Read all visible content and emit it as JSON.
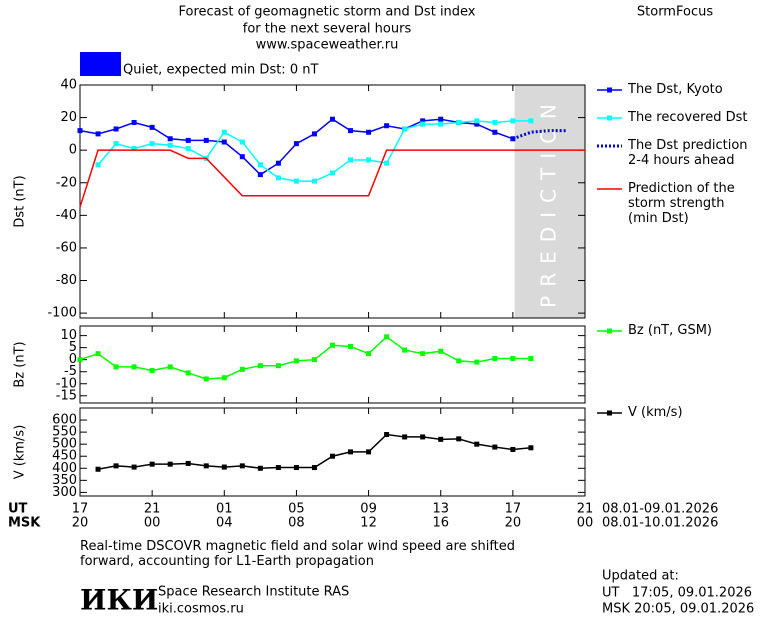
{
  "header": {
    "title_lines": [
      "Forecast of geomagnetic storm and Dst index",
      "for the next several hours",
      "www.spaceweather.ru"
    ],
    "brand": "StormFocus"
  },
  "chart_data": [
    {
      "type": "line",
      "ylabel": "Dst (nT)",
      "xlim": [
        0,
        28
      ],
      "ylim": [
        -103,
        40
      ],
      "yticks": [
        40,
        20,
        0,
        -20,
        -40,
        -60,
        -80,
        -100
      ],
      "annotation": {
        "text": "Quiet, expected min Dst: 0 nT",
        "color": "#0000ff"
      },
      "shaded_region": {
        "text": "PREDICTION",
        "xrange": [
          24.1,
          28
        ],
        "color": "#d9d9d9"
      },
      "legend": "right",
      "series": [
        {
          "name": "The Dst, Kyoto",
          "color": "#0000ff",
          "marker": true,
          "dotted": false,
          "x": [
            0,
            1,
            2,
            3,
            4,
            5,
            6,
            7,
            8,
            9,
            10,
            11,
            12,
            13,
            14,
            15,
            16,
            17,
            18,
            19,
            20,
            21,
            22,
            23,
            24
          ],
          "values": [
            12,
            10,
            13,
            17,
            14,
            7,
            6,
            6,
            5,
            -4,
            -15,
            -8,
            4,
            10,
            19,
            12,
            11,
            15,
            13,
            18,
            19,
            17,
            16,
            11,
            7
          ]
        },
        {
          "name": "The recovered Dst",
          "color": "#00ffff",
          "marker": true,
          "dotted": false,
          "x": [
            1,
            2,
            3,
            4,
            5,
            6,
            7,
            8,
            9,
            10,
            11,
            12,
            13,
            14,
            15,
            16,
            17,
            18,
            19,
            20,
            21,
            22,
            23,
            24,
            25
          ],
          "values": [
            -9,
            4,
            1,
            4,
            3,
            1,
            -5,
            11,
            5,
            -9,
            -17,
            -19,
            -19,
            -14,
            -6,
            -6,
            -8,
            13,
            16,
            16,
            17,
            18,
            17,
            18,
            18
          ]
        },
        {
          "name": "The Dst prediction\n2-4 hours ahead",
          "color": "#0000cc",
          "marker": false,
          "dotted": true,
          "x": [
            24,
            25,
            26,
            27
          ],
          "values": [
            7,
            11,
            12,
            12
          ]
        },
        {
          "name": "Prediction of the\nstorm strength\n(min Dst)",
          "color": "#ff0000",
          "marker": false,
          "dotted": false,
          "x": [
            0,
            1,
            5,
            6,
            7,
            9,
            16,
            17,
            28
          ],
          "values": [
            -35,
            0,
            0,
            -5,
            -5,
            -28,
            -28,
            0,
            0
          ]
        }
      ]
    },
    {
      "type": "line",
      "ylabel": "Bz (nT)",
      "xlim": [
        0,
        28
      ],
      "ylim": [
        -18,
        14
      ],
      "yticks": [
        10,
        5,
        0,
        -5,
        -10,
        -15
      ],
      "legend": "right",
      "series": [
        {
          "name": "Bz (nT, GSM)",
          "color": "#00ff00",
          "marker": true,
          "dotted": false,
          "x": [
            0,
            1,
            2,
            3,
            4,
            5,
            6,
            7,
            8,
            9,
            10,
            11,
            12,
            13,
            14,
            15,
            16,
            17,
            18,
            19,
            20,
            21,
            22,
            23,
            24,
            25
          ],
          "values": [
            0,
            2.5,
            -3,
            -3,
            -4.5,
            -3,
            -5.5,
            -8,
            -7.5,
            -4,
            -2.5,
            -2.5,
            -0.5,
            0,
            6,
            5.5,
            2.5,
            9.5,
            4,
            2.5,
            3.5,
            -0.5,
            -1,
            0.5,
            0.5,
            0.5
          ]
        }
      ]
    },
    {
      "type": "line",
      "ylabel": "V (km/s)",
      "xlim": [
        0,
        28
      ],
      "ylim": [
        285,
        650
      ],
      "yticks": [
        600,
        550,
        500,
        450,
        400,
        350,
        300
      ],
      "legend": "right",
      "xticks": [
        {
          "value": 0,
          "label": "17"
        },
        {
          "value": 4,
          "label": "21"
        },
        {
          "value": 8,
          "label": "01"
        },
        {
          "value": 12,
          "label": "05"
        },
        {
          "value": 16,
          "label": "09"
        },
        {
          "value": 20,
          "label": "13"
        },
        {
          "value": 24,
          "label": "17"
        },
        {
          "value": 28,
          "label": "21"
        }
      ],
      "x2ticks": [
        {
          "value": 0,
          "label": "20"
        },
        {
          "value": 4,
          "label": "00"
        },
        {
          "value": 8,
          "label": "04"
        },
        {
          "value": 12,
          "label": "08"
        },
        {
          "value": 16,
          "label": "12"
        },
        {
          "value": 20,
          "label": "16"
        },
        {
          "value": 24,
          "label": "20"
        },
        {
          "value": 28,
          "label": "00"
        }
      ],
      "x_row_labels": [
        "UT",
        "MSK"
      ],
      "x_row_dates": [
        "08.01-09.01.2026",
        "08.01-10.01.2026"
      ],
      "series": [
        {
          "name": "V (km/s)",
          "color": "#000000",
          "marker": true,
          "dotted": false,
          "x": [
            1,
            2,
            3,
            4,
            5,
            6,
            7,
            8,
            9,
            10,
            11,
            12,
            13,
            14,
            15,
            16,
            17,
            18,
            19,
            20,
            21,
            22,
            23,
            24,
            25
          ],
          "values": [
            396,
            410,
            405,
            417,
            417,
            420,
            410,
            405,
            410,
            400,
            403,
            403,
            403,
            450,
            468,
            468,
            540,
            530,
            530,
            520,
            522,
            500,
            488,
            478,
            485
          ]
        }
      ]
    }
  ],
  "footer": {
    "note": "Real-time DSCOVR magnetic field and solar wind speed are shifted\nforward, accounting for L1-Earth propagation",
    "logo": "ИКИ",
    "institute": "Space Research Institute RAS",
    "url": "iki.cosmos.ru",
    "updated": "Updated at:",
    "updated_ut": "UT   17:05, 09.01.2026",
    "updated_msk": "MSK 20:05, 09.01.2026"
  }
}
